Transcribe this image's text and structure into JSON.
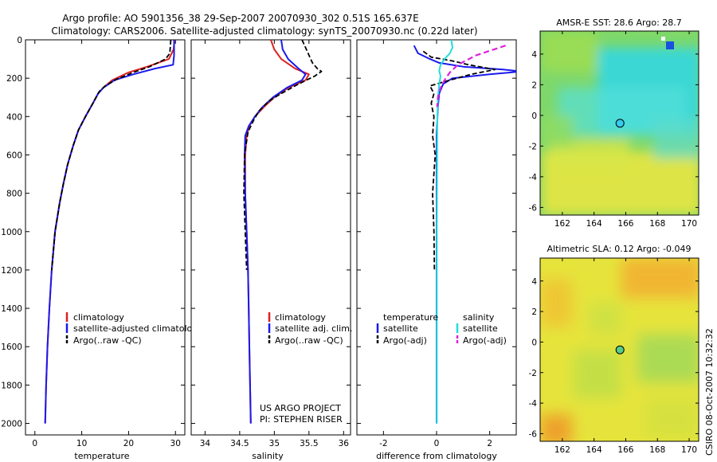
{
  "title_line1": "Argo profile: AO 5901356_38 29-Sep-2007 20070930_302 0.51S 165.637E",
  "title_line2": "Climatology: CARS2006. Satellite-adjusted climatology: synTS_20070930.nc (0.22d later)",
  "credit_line1": "US ARGO PROJECT",
  "credit_line2": "PI: STEPHEN RISER",
  "timestamp": "CSIRO 08-Oct-2007 10:32:32",
  "colors": {
    "climatology": "#dd2222",
    "satellite": "#1a1aee",
    "argo": "#000000",
    "satellite_salinity": "#22dddd",
    "argo_salinity_adj": "#dd22dd",
    "argo_position_sst": "#33ccee",
    "argo_position_sla": "#55cc88"
  },
  "chart_data": [
    {
      "id": "temperature",
      "type": "line",
      "title": "",
      "xlabel": "temperature",
      "ylabel": "",
      "xlim": [
        -2,
        32
      ],
      "ylim": [
        2060,
        0
      ],
      "y_inverted": true,
      "xticks": [
        0,
        10,
        20,
        30
      ],
      "yticks": [
        0,
        200,
        400,
        600,
        800,
        1000,
        1200,
        1400,
        1600,
        1800,
        2000
      ],
      "legend": [
        "climatology",
        "satellite-adjusted climatology",
        "Argo(..raw -QC)"
      ],
      "series": [
        {
          "name": "climatology",
          "color": "#dd2222",
          "dash": "",
          "width": 2,
          "x": [
            29.8,
            29.6,
            28.6,
            24.0,
            20.0,
            16.5,
            14.6,
            13.5,
            12.4,
            10.8,
            9.3,
            8.2,
            7.0,
            6.1,
            5.3,
            4.3,
            3.6,
            3.1,
            2.7,
            2.4,
            2.2
          ],
          "y": [
            0,
            50,
            100,
            140,
            170,
            210,
            250,
            280,
            330,
            400,
            470,
            550,
            650,
            750,
            850,
            1000,
            1200,
            1400,
            1600,
            1800,
            2000
          ]
        },
        {
          "name": "satellite-adjusted climatology",
          "color": "#1a1aee",
          "dash": "",
          "width": 2,
          "x": [
            29.7,
            29.7,
            29.5,
            25.6,
            21.0,
            17.0,
            14.6,
            13.5,
            12.4,
            10.8,
            9.3,
            8.2,
            7.0,
            6.1,
            5.3,
            4.3,
            3.6,
            3.1,
            2.7,
            2.4,
            2.2
          ],
          "y": [
            0,
            80,
            130,
            150,
            180,
            210,
            250,
            280,
            330,
            400,
            470,
            550,
            650,
            750,
            850,
            1000,
            1200,
            1400,
            1600,
            1800,
            2000
          ]
        },
        {
          "name": "Argo(..raw -QC)",
          "color": "#000000",
          "dash": "6,3",
          "width": 1.8,
          "x": [
            29.0,
            28.8,
            27.9,
            24.5,
            21.0,
            17.5,
            15.0,
            13.7,
            12.4,
            10.8,
            9.3,
            8.2,
            7.0,
            6.1,
            5.3,
            4.3,
            3.6
          ],
          "y": [
            0,
            70,
            100,
            140,
            170,
            205,
            240,
            270,
            330,
            400,
            470,
            550,
            650,
            750,
            850,
            1000,
            1200
          ]
        }
      ]
    },
    {
      "id": "salinity",
      "type": "line",
      "title": "",
      "xlabel": "salinity",
      "ylabel": "",
      "xlim": [
        33.8,
        36.1
      ],
      "ylim": [
        2060,
        0
      ],
      "y_inverted": true,
      "xticks": [
        34,
        34.5,
        35,
        35.5,
        36
      ],
      "legend": [
        "climatology",
        "satellite adj. clim.",
        "Argo(..raw -QC)"
      ],
      "series": [
        {
          "name": "climatology",
          "color": "#dd2222",
          "dash": "",
          "width": 2,
          "x": [
            34.95,
            35.0,
            35.1,
            35.3,
            35.5,
            35.45,
            35.2,
            35.0,
            34.85,
            34.72,
            34.64,
            34.6,
            34.58,
            34.58,
            34.6,
            34.62,
            34.63,
            34.64,
            34.65,
            34.66
          ],
          "y": [
            0,
            50,
            100,
            150,
            180,
            210,
            250,
            300,
            350,
            400,
            450,
            500,
            600,
            800,
            1000,
            1200,
            1400,
            1600,
            1800,
            2000
          ]
        },
        {
          "name": "satellite adj. clim.",
          "color": "#1a1aee",
          "dash": "",
          "width": 2,
          "x": [
            35.1,
            35.12,
            35.2,
            35.35,
            35.45,
            35.4,
            35.18,
            34.98,
            34.83,
            34.72,
            34.63,
            34.58,
            34.57,
            34.58,
            34.6,
            34.62,
            34.63,
            34.64,
            34.65,
            34.66
          ],
          "y": [
            0,
            50,
            100,
            150,
            180,
            210,
            250,
            300,
            350,
            400,
            450,
            500,
            600,
            800,
            1000,
            1200,
            1400,
            1600,
            1800,
            2000
          ]
        },
        {
          "name": "Argo(..raw -QC)",
          "color": "#000000",
          "dash": "6,3",
          "width": 1.8,
          "x": [
            35.4,
            35.45,
            35.5,
            35.55,
            35.62,
            35.68,
            35.58,
            35.35,
            35.1,
            34.92,
            34.78,
            34.7,
            34.62,
            34.57,
            34.56,
            34.58,
            34.6
          ],
          "y": [
            0,
            40,
            80,
            120,
            150,
            165,
            190,
            230,
            280,
            320,
            370,
            420,
            480,
            600,
            800,
            1000,
            1200
          ]
        }
      ]
    },
    {
      "id": "difference",
      "type": "line",
      "title": "",
      "xlabel": "difference from climatology",
      "ylabel": "",
      "xlim": [
        -3,
        3
      ],
      "ylim": [
        2060,
        0
      ],
      "y_inverted": true,
      "xticks": [
        -2,
        0,
        2
      ],
      "legend": [
        "temperature",
        "satellite",
        "Argo(-adj)",
        "salinity",
        "satellite",
        "Argo(-adj)"
      ],
      "series": [
        {
          "name": "temperature satellite",
          "color": "#1a1aee",
          "dash": "",
          "width": 2,
          "x": [
            -0.85,
            -0.7,
            -0.25,
            0.1,
            1.0,
            2.5,
            3.2,
            2.0,
            0.6,
            0.25,
            0.1,
            0.05,
            0.0,
            0.0,
            0.0,
            0.0
          ],
          "y": [
            30,
            70,
            100,
            120,
            140,
            155,
            165,
            180,
            200,
            230,
            280,
            350,
            500,
            1000,
            1500,
            2000
          ]
        },
        {
          "name": "temperature Argo(-adj)",
          "color": "#000000",
          "dash": "6,3",
          "width": 1.8,
          "x": [
            -0.5,
            -0.2,
            0.6,
            1.2,
            2.2,
            1.3,
            0.5,
            -0.25,
            -0.1,
            -0.2,
            -0.1,
            -0.15,
            -0.05,
            -0.15,
            -0.1,
            -0.08
          ],
          "y": [
            60,
            90,
            110,
            130,
            155,
            180,
            210,
            240,
            280,
            330,
            400,
            500,
            600,
            800,
            1000,
            1200
          ]
        },
        {
          "name": "salinity satellite",
          "color": "#22dddd",
          "dash": "",
          "width": 2,
          "x": [
            0.55,
            0.6,
            0.5,
            0.3,
            0.15,
            0.1,
            0.15,
            0.1,
            0.05,
            0.03,
            0.02,
            0.01,
            0.01,
            0.01
          ],
          "y": [
            0,
            40,
            70,
            100,
            130,
            160,
            190,
            230,
            300,
            400,
            600,
            1000,
            1500,
            2000
          ]
        },
        {
          "name": "salinity Argo(-adj)",
          "color": "#dd22dd",
          "dash": "7,4",
          "width": 2.2,
          "x": [
            2.6,
            1.5,
            0.8,
            0.5,
            0.3,
            0.15,
            0.05,
            0.02
          ],
          "y": [
            30,
            80,
            130,
            170,
            210,
            250,
            300,
            350
          ]
        }
      ]
    },
    {
      "id": "sst_map",
      "type": "heatmap",
      "title": "AMSR-E SST: 28.6 Argo: 28.7",
      "xlabel": "",
      "ylabel": "",
      "xlim": [
        160.6,
        170.6
      ],
      "ylim": [
        -6.5,
        5.5
      ],
      "xticks": [
        162,
        164,
        166,
        168,
        170
      ],
      "yticks": [
        -6,
        -4,
        -2,
        0,
        2,
        4
      ],
      "argo_position": [
        165.637,
        -0.51
      ]
    },
    {
      "id": "sla_map",
      "type": "heatmap",
      "title": "Altimetric SLA: 0.12 Argo: -0.049",
      "xlabel": "",
      "ylabel": "",
      "xlim": [
        160.6,
        170.6
      ],
      "ylim": [
        -6.5,
        5.5
      ],
      "xticks": [
        162,
        164,
        166,
        168,
        170
      ],
      "yticks": [
        -6,
        -4,
        -2,
        0,
        2,
        4
      ],
      "argo_position": [
        165.637,
        -0.51
      ]
    }
  ]
}
